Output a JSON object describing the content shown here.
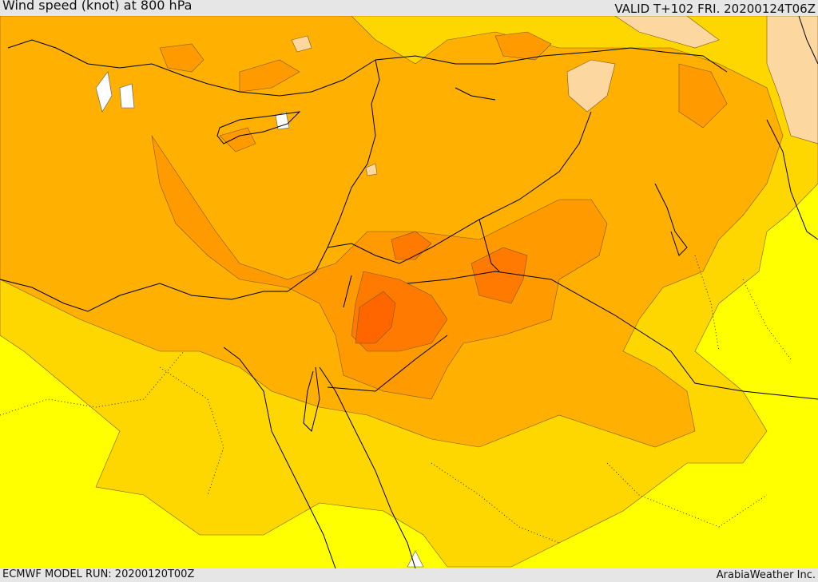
{
  "header": {
    "title": "Wind speed (knot) at 800 hPa",
    "valid": "VALID T+102 FRI. 20200124T06Z"
  },
  "footer": {
    "model_run": "ECMWF MODEL RUN: 20200120T00Z",
    "credit": "ArabiaWeather Inc."
  },
  "colors": {
    "level_0": "#ffff00",
    "level_1": "#ffd700",
    "level_2": "#ffb000",
    "level_3": "#ff9a00",
    "level_4": "#ff7a00",
    "level_5": "#ff6600",
    "level_6": "#fcd7a0",
    "calm": "#ffffff",
    "coast_and_borders": "#000000"
  }
}
